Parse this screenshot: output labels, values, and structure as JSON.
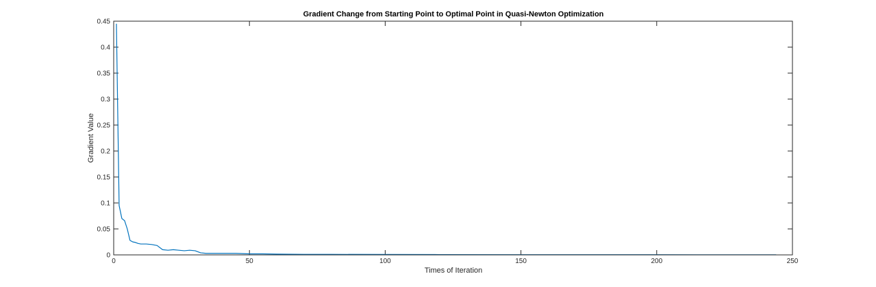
{
  "chart_data": {
    "type": "line",
    "title": "Gradient Change from Starting Point to Optimal Point in Quasi-Newton Optimization",
    "xlabel": "Times of Iteration",
    "ylabel": "Gradient Value",
    "xlim": [
      0,
      250
    ],
    "ylim": [
      0,
      0.45
    ],
    "xticks": [
      0,
      50,
      100,
      150,
      200,
      250
    ],
    "yticks": [
      0,
      0.05,
      0.1,
      0.15,
      0.2,
      0.25,
      0.3,
      0.35,
      0.4,
      0.45
    ],
    "xtick_labels": [
      "0",
      "50",
      "100",
      "150",
      "200",
      "250"
    ],
    "ytick_labels": [
      "0",
      "0.05",
      "0.1",
      "0.15",
      "0.2",
      "0.25",
      "0.3",
      "0.35",
      "0.4",
      "0.45"
    ],
    "grid": false,
    "box": true,
    "series": [
      {
        "color": "#0072BD",
        "x": [
          1,
          2,
          3,
          4,
          5,
          6,
          7,
          8,
          9,
          10,
          12,
          14,
          16,
          18,
          20,
          22,
          24,
          26,
          28,
          30,
          32,
          34,
          36,
          40,
          45,
          50,
          55,
          60,
          70,
          80,
          100,
          120,
          150,
          200,
          244
        ],
        "y": [
          0.445,
          0.095,
          0.07,
          0.066,
          0.05,
          0.028,
          0.025,
          0.024,
          0.022,
          0.021,
          0.021,
          0.02,
          0.018,
          0.01,
          0.009,
          0.01,
          0.009,
          0.008,
          0.009,
          0.008,
          0.004,
          0.003,
          0.003,
          0.003,
          0.003,
          0.002,
          0.002,
          0.0015,
          0.001,
          0.001,
          0.0008,
          0.0006,
          0.0004,
          0.0003,
          0.0002
        ]
      }
    ]
  }
}
